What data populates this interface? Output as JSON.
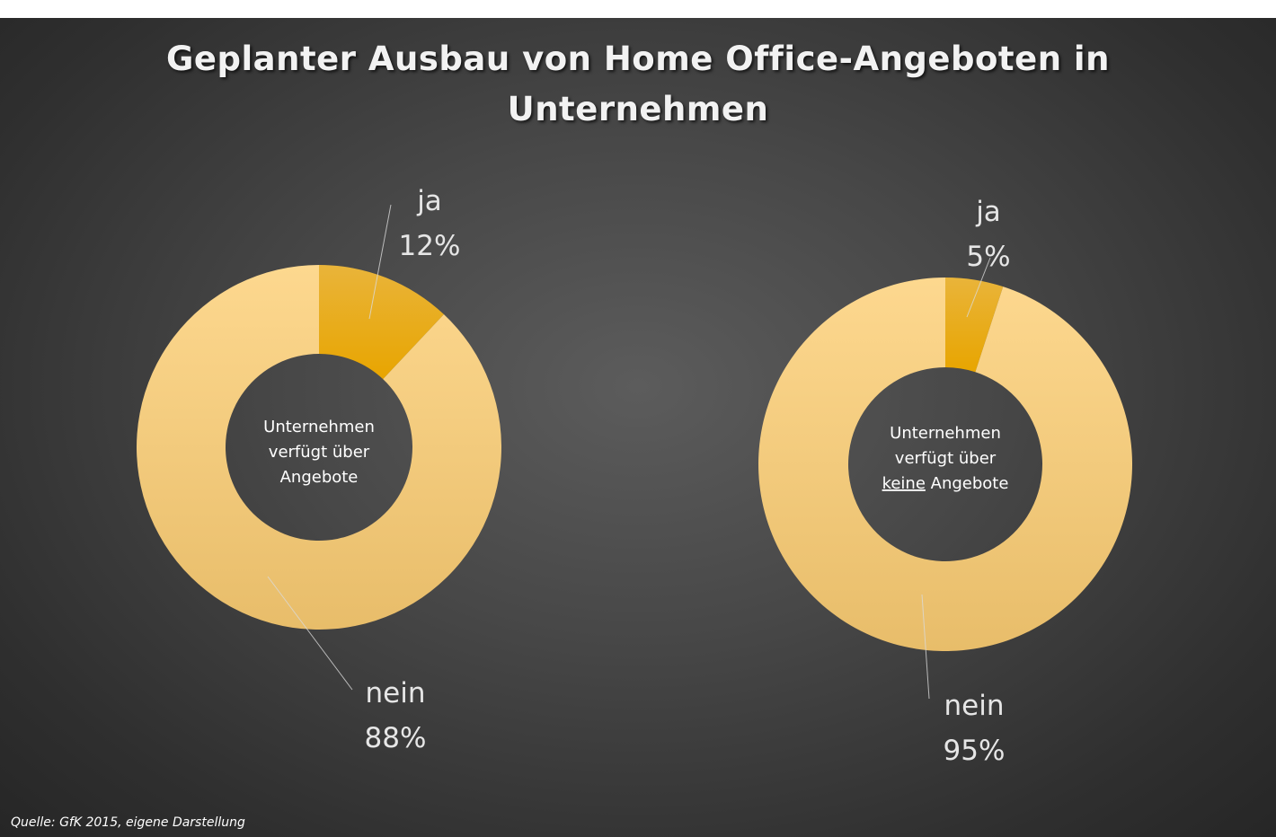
{
  "title_line1": "Geplanter Ausbau von Home Office-Angeboten in",
  "title_line2": "Unternehmen",
  "source": "Quelle: GfK 2015, eigene Darstellung",
  "colors": {
    "ja": "#e8a900",
    "nein": "#fcd68a"
  },
  "chart_data": [
    {
      "type": "pie",
      "variant": "donut",
      "center_label": [
        "Unternehmen",
        "verfügt über",
        "Angebote"
      ],
      "categories": [
        "ja",
        "nein"
      ],
      "values": [
        12,
        88
      ],
      "labels": [
        "12%",
        "88%"
      ]
    },
    {
      "type": "pie",
      "variant": "donut",
      "center_label": [
        "Unternehmen",
        "verfügt über",
        "keine Angebote"
      ],
      "center_label_underlined_word": "keine",
      "categories": [
        "ja",
        "nein"
      ],
      "values": [
        5,
        95
      ],
      "labels": [
        "5%",
        "95%"
      ]
    }
  ]
}
